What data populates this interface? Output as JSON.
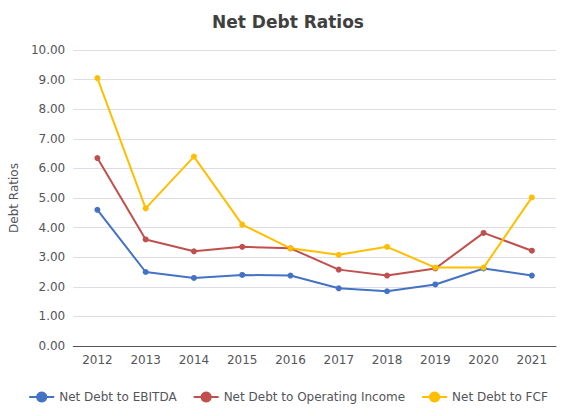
{
  "chart_data": {
    "type": "line",
    "title": "Net Debt Ratios",
    "ylabel": "Debt Ratios",
    "categories": [
      "2012",
      "2013",
      "2014",
      "2015",
      "2016",
      "2017",
      "2018",
      "2019",
      "2020",
      "2021"
    ],
    "series": [
      {
        "name": "Net Debt to EBITDA",
        "color": "#4472C4",
        "values": [
          4.6,
          2.5,
          2.3,
          2.4,
          2.38,
          1.95,
          1.85,
          2.08,
          2.62,
          2.38
        ]
      },
      {
        "name": "Net Debt to Operating Income",
        "color": "#C0504D",
        "values": [
          6.35,
          3.6,
          3.2,
          3.35,
          3.3,
          2.58,
          2.38,
          2.62,
          3.82,
          3.22
        ]
      },
      {
        "name": "Net Debt to FCF",
        "color": "#FFBF00",
        "values": [
          9.05,
          4.65,
          6.4,
          4.1,
          3.3,
          3.08,
          3.35,
          2.65,
          2.65,
          5.02
        ]
      }
    ],
    "ylim": [
      0.0,
      10.0
    ],
    "yticks": [
      {
        "value": 0,
        "label": "0.00"
      },
      {
        "value": 1,
        "label": "1.00"
      },
      {
        "value": 2,
        "label": "2.00"
      },
      {
        "value": 3,
        "label": "3.00"
      },
      {
        "value": 4,
        "label": "4.00"
      },
      {
        "value": 5,
        "label": "5.00"
      },
      {
        "value": 6,
        "label": "6.00"
      },
      {
        "value": 7,
        "label": "7.00"
      },
      {
        "value": 8,
        "label": "8.00"
      },
      {
        "value": 9,
        "label": "9.00"
      },
      {
        "value": 10,
        "label": "10.00"
      }
    ],
    "grid": true,
    "legend": "bottom",
    "marker": "circle"
  }
}
